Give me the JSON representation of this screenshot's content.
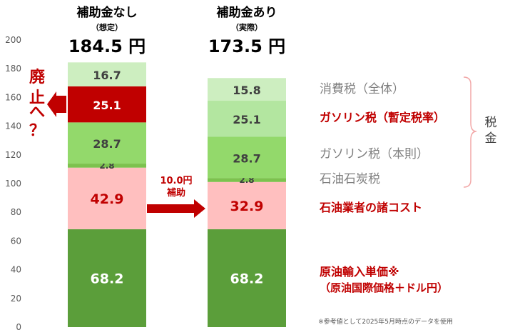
{
  "chart_data": {
    "type": "bar",
    "stacked": true,
    "ylim": [
      0,
      200
    ],
    "yticks": [
      0,
      20,
      40,
      60,
      80,
      100,
      120,
      140,
      160,
      180,
      200
    ],
    "bars": [
      {
        "title": "補助金なし",
        "subtitle": "（想定）",
        "total_label": "184.5 円",
        "values": [
          68.2,
          42.9,
          2.8,
          28.7,
          25.1,
          16.7
        ],
        "labels": [
          "68.2",
          "42.9",
          "2.8",
          "28.7",
          "25.1",
          "16.7"
        ]
      },
      {
        "title": "補助金あり",
        "subtitle": "（実際）",
        "total_label": "173.5 円",
        "values": [
          68.2,
          32.9,
          2.8,
          28.7,
          25.1,
          15.8
        ],
        "labels": [
          "68.2",
          "32.9",
          "2.8",
          "28.7",
          "25.1",
          "15.8"
        ]
      }
    ],
    "segments": [
      {
        "name": "原油輸入単価※",
        "color": "#5b9e3a",
        "label_color": "#ffffff"
      },
      {
        "name": "石油業者の諸コスト",
        "color": "#ffbfbf",
        "label_color": "#c00000"
      },
      {
        "name": "石油石炭税",
        "color": "#7cc24e",
        "label_color": "#404040"
      },
      {
        "name": "ガソリン税（本則）",
        "color": "#93d96b",
        "label_color": "#404040"
      },
      {
        "name": "ガソリン税（暫定税率）",
        "color_first": "#c00000",
        "color": "#b3e6a0",
        "label_color_first": "#ffffff",
        "label_color": "#404040"
      },
      {
        "name": "消費税（全体）",
        "color": "#cdeec0",
        "label_color": "#404040"
      }
    ],
    "legend": [
      {
        "text": "消費税（全体）",
        "color": "#7f7f7f",
        "bold": false
      },
      {
        "text": "ガソリン税（暫定税率）",
        "color": "#c00000",
        "bold": true
      },
      {
        "text": "ガソリン税（本則）",
        "color": "#7f7f7f",
        "bold": false
      },
      {
        "text": "石油石炭税",
        "color": "#7f7f7f",
        "bold": false
      },
      {
        "text": "石油業者の諸コスト",
        "color": "#c00000",
        "bold": true
      },
      {
        "text": "原油輸入単価※",
        "color": "#c00000",
        "bold": true
      },
      {
        "text": "（原油国際価格＋ドル円）",
        "color": "#c00000",
        "bold": true
      }
    ],
    "tax_bracket_label": "税金",
    "annotations": {
      "abolish": [
        "廃",
        "止",
        "へ",
        "？"
      ],
      "subsidy": [
        "10.0円",
        "補助"
      ],
      "footnote": "※参考値として2025年5月時点のデータを使用"
    }
  }
}
